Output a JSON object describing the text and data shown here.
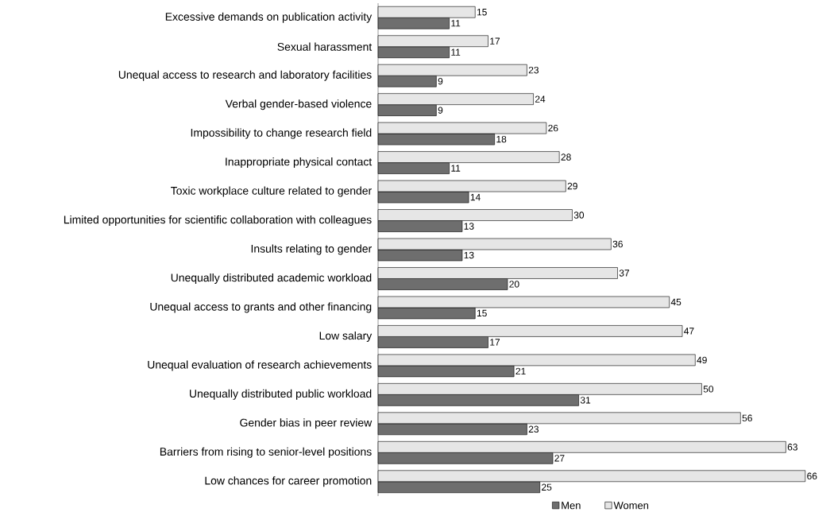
{
  "chart_data": {
    "type": "bar",
    "orientation": "horizontal",
    "data_labels": true,
    "legend": "bottom",
    "categories": [
      "Excessive demands on publication activity",
      "Sexual harassment",
      "Unequal access to research and laboratory facilities",
      "Verbal gender-based violence",
      "Impossibility to change research field",
      "Inappropriate physical contact",
      "Toxic workplace culture related to gender",
      "Limited opportunities for scientific collaboration with colleagues",
      "Insults relating to gender",
      "Unequally distributed academic workload",
      "Unequal access to grants and other financing",
      "Low salary",
      "Unequal evaluation of research achievements",
      "Unequally distributed public workload",
      "Gender bias in peer review",
      "Barriers from rising to senior-level positions",
      "Low chances for career promotion"
    ],
    "series": [
      {
        "name": "Men",
        "color": "#6e6e6e",
        "values": [
          11,
          11,
          9,
          9,
          18,
          11,
          14,
          13,
          13,
          20,
          15,
          17,
          21,
          31,
          23,
          27,
          25
        ]
      },
      {
        "name": "Women",
        "color": "#e6e6e6",
        "values": [
          15,
          17,
          23,
          24,
          26,
          28,
          29,
          30,
          36,
          37,
          45,
          47,
          49,
          50,
          56,
          63,
          66
        ]
      }
    ]
  }
}
